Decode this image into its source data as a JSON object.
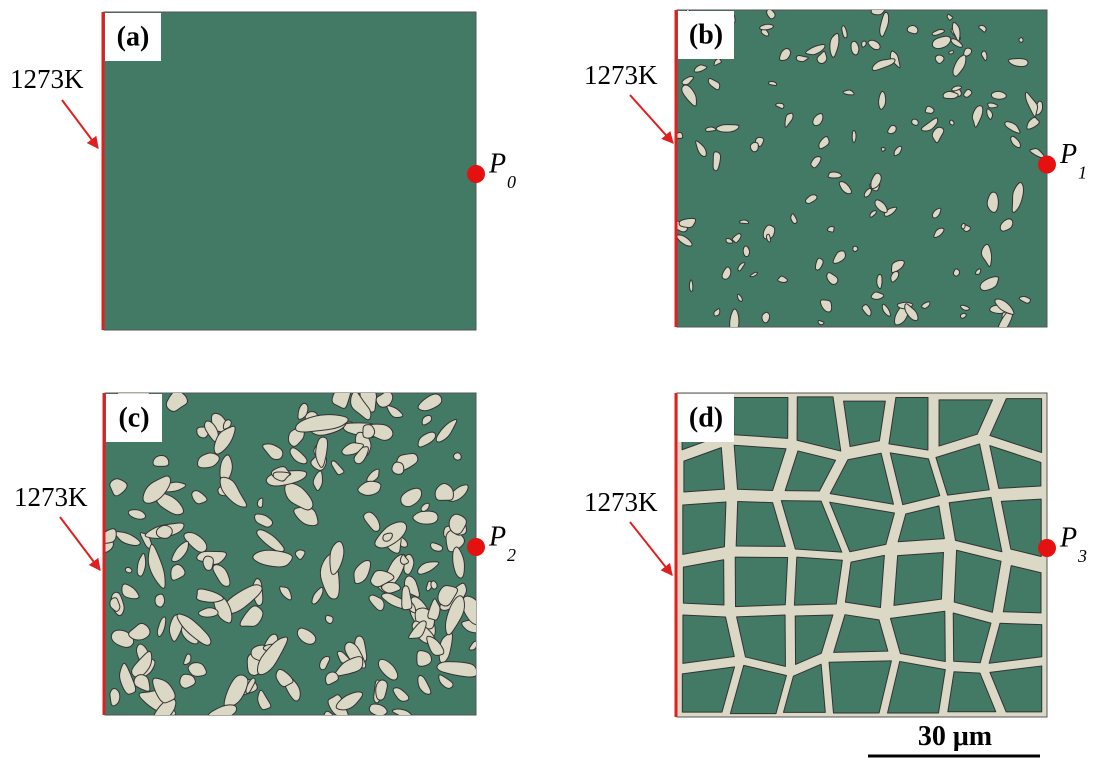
{
  "panels": [
    {
      "label": "(a)",
      "temperature": "1273K",
      "point": "P",
      "point_sub": "0"
    },
    {
      "label": "(b)",
      "temperature": "1273K",
      "point": "P",
      "point_sub": "1"
    },
    {
      "label": "(c)",
      "temperature": "1273K",
      "point": "P",
      "point_sub": "2"
    },
    {
      "label": "(d)",
      "temperature": "1273K",
      "point": "P",
      "point_sub": "3"
    }
  ],
  "scale_bar": "30 μm"
}
